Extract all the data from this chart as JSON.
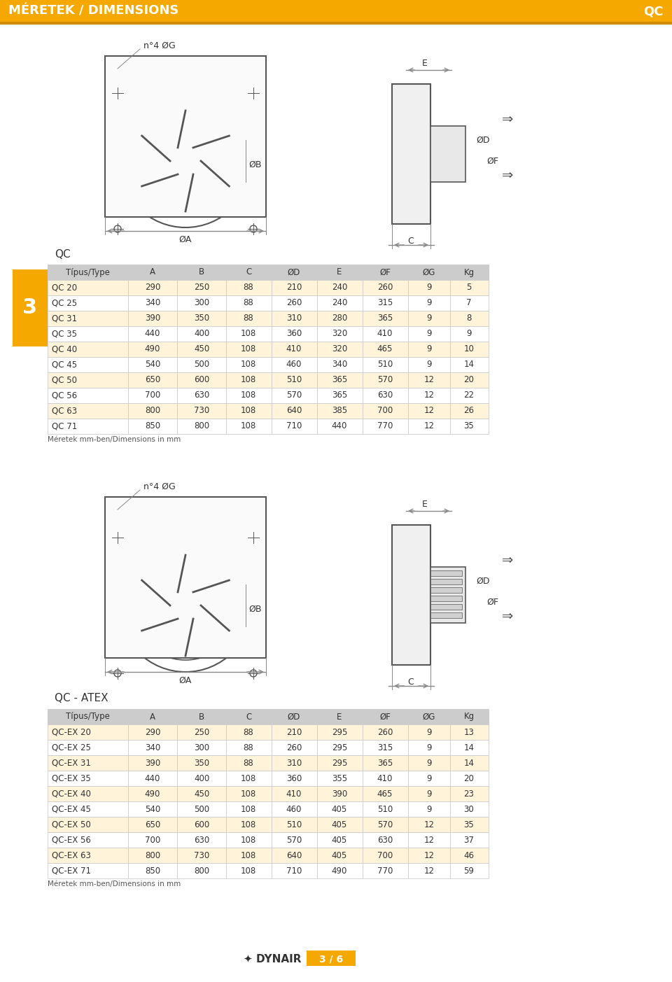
{
  "title": "MÉRETEK / DIMENSIONS",
  "title_right": "QC",
  "title_bg": "#F5A800",
  "title_text_color": "#FFFFFF",
  "page_bg": "#FFFFFF",
  "section_num": "3",
  "section_num_bg": "#F5A800",
  "qc_table_title": "QC",
  "qc_atex_table_title": "QC - ATEX",
  "table_header": [
    "Típus/Type",
    "A",
    "B",
    "C",
    "ØD",
    "E",
    "ØF",
    "ØG",
    "Kg"
  ],
  "table_header_bg": "#CCCCCC",
  "table_row_bg_odd": "#FFF3D9",
  "table_row_bg_even": "#FFFFFF",
  "table_border_color": "#CCCCCC",
  "qc_rows": [
    [
      "QC 20",
      "290",
      "250",
      "88",
      "210",
      "240",
      "260",
      "9",
      "5"
    ],
    [
      "QC 25",
      "340",
      "300",
      "88",
      "260",
      "240",
      "315",
      "9",
      "7"
    ],
    [
      "QC 31",
      "390",
      "350",
      "88",
      "310",
      "280",
      "365",
      "9",
      "8"
    ],
    [
      "QC 35",
      "440",
      "400",
      "108",
      "360",
      "320",
      "410",
      "9",
      "9"
    ],
    [
      "QC 40",
      "490",
      "450",
      "108",
      "410",
      "320",
      "465",
      "9",
      "10"
    ],
    [
      "QC 45",
      "540",
      "500",
      "108",
      "460",
      "340",
      "510",
      "9",
      "14"
    ],
    [
      "QC 50",
      "650",
      "600",
      "108",
      "510",
      "365",
      "570",
      "12",
      "20"
    ],
    [
      "QC 56",
      "700",
      "630",
      "108",
      "570",
      "365",
      "630",
      "12",
      "22"
    ],
    [
      "QC 63",
      "800",
      "730",
      "108",
      "640",
      "385",
      "700",
      "12",
      "26"
    ],
    [
      "QC 71",
      "850",
      "800",
      "108",
      "710",
      "440",
      "770",
      "12",
      "35"
    ]
  ],
  "qc_ex_rows": [
    [
      "QC-EX 20",
      "290",
      "250",
      "88",
      "210",
      "295",
      "260",
      "9",
      "13"
    ],
    [
      "QC-EX 25",
      "340",
      "300",
      "88",
      "260",
      "295",
      "315",
      "9",
      "14"
    ],
    [
      "QC-EX 31",
      "390",
      "350",
      "88",
      "310",
      "295",
      "365",
      "9",
      "14"
    ],
    [
      "QC-EX 35",
      "440",
      "400",
      "108",
      "360",
      "355",
      "410",
      "9",
      "20"
    ],
    [
      "QC-EX 40",
      "490",
      "450",
      "108",
      "410",
      "390",
      "465",
      "9",
      "23"
    ],
    [
      "QC-EX 45",
      "540",
      "500",
      "108",
      "460",
      "405",
      "510",
      "9",
      "30"
    ],
    [
      "QC-EX 50",
      "650",
      "600",
      "108",
      "510",
      "405",
      "570",
      "12",
      "35"
    ],
    [
      "QC-EX 56",
      "700",
      "630",
      "108",
      "570",
      "405",
      "630",
      "12",
      "37"
    ],
    [
      "QC-EX 63",
      "800",
      "730",
      "108",
      "640",
      "405",
      "700",
      "12",
      "46"
    ],
    [
      "QC-EX 71",
      "850",
      "800",
      "108",
      "710",
      "490",
      "770",
      "12",
      "59"
    ]
  ],
  "note": "Méretek mm-ben/Dimensions in mm",
  "footer_logo": "DYNAIR",
  "footer_page": "3 / 6",
  "line_color": "#555555",
  "dim_line_color": "#888888"
}
